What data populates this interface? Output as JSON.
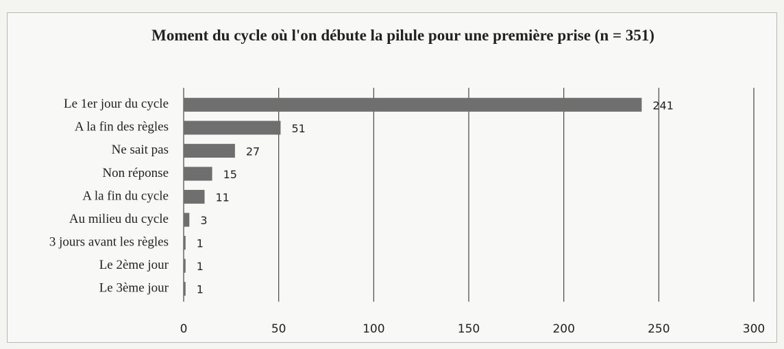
{
  "chart_data": {
    "type": "bar",
    "orientation": "horizontal",
    "title": "Moment du cycle où l'on débute la pilule pour une première prise (n = 351)",
    "categories": [
      "Le 1er jour du cycle",
      "A la fin des règles",
      "Ne sait pas",
      "Non réponse",
      "A la fin du cycle",
      "Au milieu du cycle",
      "3 jours avant les règles",
      "Le 2ème jour",
      "Le 3ème jour"
    ],
    "values": [
      241,
      51,
      27,
      15,
      11,
      3,
      1,
      1,
      1
    ],
    "color": "#6f6f6f",
    "xlim": [
      0,
      300
    ],
    "xticks": [
      0,
      50,
      100,
      150,
      200,
      250,
      300
    ],
    "grid": true
  }
}
